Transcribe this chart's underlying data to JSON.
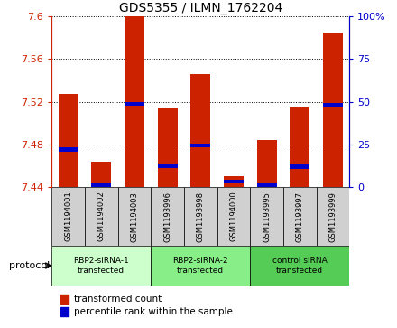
{
  "title": "GDS5355 / ILMN_1762204",
  "samples": [
    "GSM1194001",
    "GSM1194002",
    "GSM1194003",
    "GSM1193996",
    "GSM1193998",
    "GSM1194000",
    "GSM1193995",
    "GSM1193997",
    "GSM1193999"
  ],
  "red_values": [
    7.527,
    7.464,
    7.6,
    7.514,
    7.546,
    7.45,
    7.484,
    7.515,
    7.585
  ],
  "blue_values": [
    7.475,
    7.441,
    7.518,
    7.46,
    7.479,
    7.445,
    7.442,
    7.459,
    7.517
  ],
  "ymin": 7.44,
  "ymax": 7.6,
  "yticks": [
    7.44,
    7.48,
    7.52,
    7.56,
    7.6
  ],
  "right_yticks": [
    0,
    25,
    50,
    75,
    100
  ],
  "groups": [
    {
      "label": "RBP2-siRNA-1\ntransfected",
      "indices": [
        0,
        1,
        2
      ],
      "color": "#ccffcc"
    },
    {
      "label": "RBP2-siRNA-2\ntransfected",
      "indices": [
        3,
        4,
        5
      ],
      "color": "#88ee88"
    },
    {
      "label": "control siRNA\ntransfected",
      "indices": [
        6,
        7,
        8
      ],
      "color": "#55cc55"
    }
  ],
  "bar_color_red": "#cc2200",
  "bar_color_blue": "#0000cc",
  "bar_width": 0.6,
  "left_axis_color": "#cc2200",
  "right_axis_color": "#0000cc",
  "legend_red": "transformed count",
  "legend_blue": "percentile rank within the sample",
  "protocol_label": "protocol",
  "background_gray": "#d0d0d0",
  "title_fontsize": 10
}
